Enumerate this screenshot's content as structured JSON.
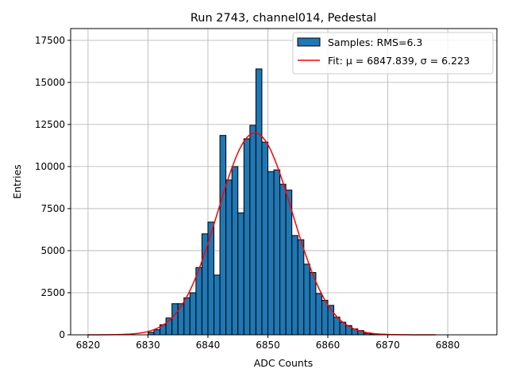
{
  "chart_data": {
    "type": "bar",
    "title": "Run 2743, channel014, Pedestal",
    "xlabel": "ADC Counts",
    "ylabel": "Entries",
    "xlim": [
      6817.1,
      6888.2
    ],
    "ylim": [
      0,
      18200
    ],
    "grid": true,
    "legend_placement": "top-right",
    "xticks": [
      6820,
      6830,
      6840,
      6850,
      6860,
      6870,
      6880
    ],
    "yticks": [
      0,
      2500,
      5000,
      7500,
      10000,
      12500,
      15000,
      17500
    ],
    "bin_width": 1,
    "bin_edges_start": [
      6830,
      6831,
      6832,
      6833,
      6834,
      6835,
      6836,
      6837,
      6838,
      6839,
      6840,
      6841,
      6842,
      6843,
      6844,
      6845,
      6846,
      6847,
      6848,
      6849,
      6850,
      6851,
      6852,
      6853,
      6854,
      6855,
      6856,
      6857,
      6858,
      6859,
      6860,
      6861,
      6862,
      6863,
      6864,
      6865,
      6866,
      6867
    ],
    "values": [
      150,
      300,
      600,
      1000,
      1850,
      1850,
      2200,
      2500,
      4000,
      6000,
      6700,
      3550,
      11850,
      9200,
      10000,
      7250,
      11650,
      12450,
      15800,
      11450,
      9700,
      9800,
      8950,
      8600,
      5900,
      5650,
      4200,
      3700,
      2450,
      2050,
      1750,
      1050,
      750,
      550,
      350,
      250,
      100,
      50
    ],
    "bar_color": "#1f77b4",
    "fit": {
      "mu": 6847.839,
      "sigma": 6.223,
      "peak": 12000,
      "x_range": [
        6820,
        6878
      ],
      "color": "#ff0000"
    },
    "legend": [
      {
        "label": "Samples: RMS=6.3",
        "kind": "patch"
      },
      {
        "label": "Fit: μ = 6847.839, σ = 6.223",
        "kind": "line"
      }
    ]
  }
}
